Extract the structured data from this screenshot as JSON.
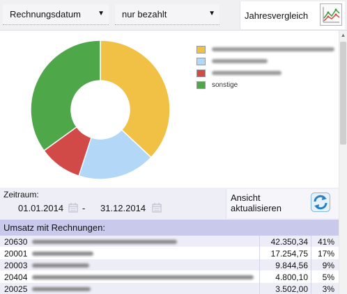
{
  "toolbar": {
    "date_select": "Rechnungsdatum",
    "filter_select": "nur bezahlt",
    "compare_label": "Jahresvergleich",
    "dropdown_arrow": "▼",
    "compare_icon": "line-chart-icon"
  },
  "chart_data": {
    "type": "pie",
    "categories": [
      "",
      "",
      "",
      "sonstige"
    ],
    "values": [
      37,
      18,
      10,
      35
    ],
    "colors": [
      "#f0c144",
      "#b3d8f7",
      "#d24a48",
      "#4ea84a"
    ],
    "donut": true,
    "legend": "right"
  },
  "legend": {
    "items": [
      {
        "label": "",
        "color": "#f0c144"
      },
      {
        "label": "",
        "color": "#b3d8f7"
      },
      {
        "label": "",
        "color": "#d24a48"
      },
      {
        "label": "sonstige",
        "color": "#4ea84a"
      }
    ]
  },
  "period": {
    "label": "Zeitraum:",
    "from": "01.01.2014",
    "separator": "-",
    "to": "31.12.2014",
    "refresh_label": "Ansicht aktualisieren",
    "refresh_icon": "refresh-icon",
    "calendar_icon": "calendar-icon"
  },
  "table": {
    "title": "Umsatz mit Rechnungen:",
    "rows": [
      {
        "id": "20630",
        "amount": "42.350,34",
        "pct": "41%"
      },
      {
        "id": "20001",
        "amount": "17.254,75",
        "pct": "17%"
      },
      {
        "id": "20003",
        "amount": "9.844,56",
        "pct": "9%"
      },
      {
        "id": "20404",
        "amount": "4.800,10",
        "pct": "5%"
      },
      {
        "id": "20025",
        "amount": "3.502,00",
        "pct": "3%"
      }
    ]
  },
  "colors": {
    "header_band": "#c9c9eb",
    "row_alt": "#ededf7",
    "period_bg": "#eeeef6"
  }
}
